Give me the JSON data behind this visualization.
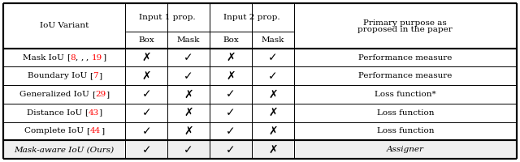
{
  "col_props": [
    0.238,
    0.082,
    0.082,
    0.082,
    0.082,
    0.234
  ],
  "header_row1_labels": [
    "IoU Variant",
    "Input 1 prop.",
    "Input 2 prop.",
    "Primary purpose as\nproposed in the paper"
  ],
  "header_row2_labels": [
    "Box",
    "Mask",
    "Box",
    "Mask"
  ],
  "rows": [
    {
      "name": "Mask IoU ",
      "refs": [
        [
          "8",
          true
        ],
        [
          ", ",
          false
        ],
        [
          "19",
          true
        ]
      ],
      "bracket": true,
      "marks": [
        "x",
        "c",
        "x",
        "c"
      ],
      "purpose": "Performance measure",
      "italic": false
    },
    {
      "name": "Boundary IoU ",
      "refs": [
        [
          "7",
          true
        ]
      ],
      "bracket": true,
      "marks": [
        "x",
        "c",
        "x",
        "c"
      ],
      "purpose": "Performance measure",
      "italic": false
    },
    {
      "name": "Generalized IoU ",
      "refs": [
        [
          "29",
          true
        ]
      ],
      "bracket": true,
      "marks": [
        "c",
        "x",
        "c",
        "x"
      ],
      "purpose": "Loss function*",
      "italic": false
    },
    {
      "name": "Distance IoU ",
      "refs": [
        [
          "43",
          true
        ]
      ],
      "bracket": true,
      "marks": [
        "c",
        "x",
        "c",
        "x"
      ],
      "purpose": "Loss function",
      "italic": false
    },
    {
      "name": "Complete IoU ",
      "refs": [
        [
          "44",
          true
        ]
      ],
      "bracket": true,
      "marks": [
        "c",
        "x",
        "c",
        "x"
      ],
      "purpose": "Loss function",
      "italic": false
    },
    {
      "name": "Mask-aware IoU (Ours)",
      "refs": [],
      "bracket": false,
      "marks": [
        "c",
        "c",
        "c",
        "x"
      ],
      "purpose": "Assigner",
      "italic": true
    }
  ],
  "check": "✓",
  "cross": "✗",
  "red_color": "#ff0000",
  "black_color": "#000000",
  "bg_color": "#ffffff",
  "last_row_bg": "#efefef",
  "border_lw_thin": 0.7,
  "border_lw_thick": 1.5,
  "fontsize_header": 7.5,
  "fontsize_data": 7.5,
  "fontsize_marks": 10
}
